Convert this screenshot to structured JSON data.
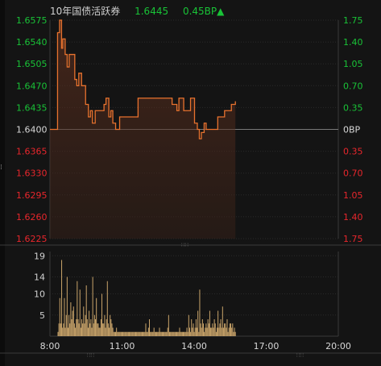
{
  "header": {
    "title": "10年国债活跃券",
    "price": "1.6445",
    "change": "0.45BP▲"
  },
  "colors": {
    "up": "#19c337",
    "down": "#e8262c",
    "line": "#e8722e",
    "volume": "#c9a46a"
  },
  "chart_data": [
    {
      "type": "line",
      "title": "",
      "price_ticks": [
        "1.6575",
        "1.6540",
        "1.6505",
        "1.6470",
        "1.6435",
        "1.6400",
        "1.6365",
        "1.6330",
        "1.6295",
        "1.6260",
        "1.6225"
      ],
      "bp_ticks": [
        "1.75",
        "1.40",
        "1.05",
        "0.70",
        "0.35",
        "0BP",
        "0.35",
        "0.70",
        "1.05",
        "1.40",
        "1.75"
      ],
      "ylim": [
        1.6225,
        1.6575
      ],
      "x_labels": [
        "8:00",
        "11:00",
        "14:00",
        "17:00",
        "20:00"
      ],
      "base": 1.64,
      "series": [
        {
          "x": [
            "8:00",
            "8:07",
            "8:10",
            "8:14",
            "8:19",
            "8:24",
            "8:29",
            "8:32",
            "8:38",
            "8:43",
            "8:48",
            "8:55",
            "9:02",
            "9:07",
            "9:12",
            "9:19",
            "9:24",
            "9:29",
            "9:36",
            "9:41",
            "9:46",
            "9:53",
            "9:58",
            "10:03",
            "10:10",
            "10:15",
            "10:20",
            "10:27",
            "10:32",
            "10:37",
            "10:44",
            "10:49",
            "10:54",
            "11:01",
            "11:06",
            "11:11",
            "11:18",
            "11:23",
            "11:28",
            "11:35",
            "11:40",
            "11:45",
            "11:52",
            "11:57",
            "12:02",
            "12:09",
            "12:14",
            "12:19",
            "12:26",
            "12:31",
            "12:36",
            "12:43",
            "12:48",
            "12:53",
            "13:00",
            "13:05",
            "13:10",
            "13:17",
            "13:22",
            "13:27",
            "13:34",
            "13:39",
            "13:44",
            "13:51",
            "13:56",
            "14:01",
            "14:08",
            "14:13",
            "14:18",
            "14:25",
            "14:30",
            "14:35",
            "14:42",
            "14:47",
            "14:52",
            "14:59",
            "15:04",
            "15:09",
            "15:16",
            "15:21",
            "15:26",
            "15:33",
            "15:38",
            "15:43"
          ],
          "values": [
            1.64,
            1.64,
            1.64,
            1.64,
            1.6555,
            1.6575,
            1.653,
            1.6545,
            1.652,
            1.65,
            1.652,
            1.652,
            1.648,
            1.647,
            1.649,
            1.647,
            1.647,
            1.644,
            1.642,
            1.643,
            1.641,
            1.643,
            1.643,
            1.643,
            1.643,
            1.644,
            1.645,
            1.642,
            1.643,
            1.641,
            1.64,
            1.64,
            1.642,
            1.642,
            1.642,
            1.642,
            1.642,
            1.642,
            1.642,
            1.642,
            1.645,
            1.645,
            1.645,
            1.645,
            1.645,
            1.645,
            1.645,
            1.645,
            1.645,
            1.645,
            1.645,
            1.645,
            1.645,
            1.645,
            1.645,
            1.644,
            1.644,
            1.643,
            1.645,
            1.645,
            1.643,
            1.643,
            1.643,
            1.645,
            1.645,
            1.641,
            1.64,
            1.6385,
            1.6395,
            1.641,
            1.64,
            1.64,
            1.64,
            1.64,
            1.64,
            1.642,
            1.642,
            1.642,
            1.643,
            1.643,
            1.643,
            1.644,
            1.644,
            1.6445
          ]
        }
      ]
    },
    {
      "type": "bar",
      "title": "",
      "y_ticks": [
        "19",
        "14",
        "10",
        "5"
      ],
      "ylim": [
        0,
        20
      ],
      "x_range": [
        "8:00",
        "20:00"
      ],
      "values": [
        1,
        3,
        9,
        3,
        18,
        2,
        3,
        9,
        2,
        5,
        14,
        2,
        5,
        3,
        8,
        4,
        6,
        7,
        3,
        2,
        4,
        13,
        4,
        3,
        11,
        2,
        4,
        3,
        7,
        3,
        5,
        12,
        4,
        2,
        6,
        3,
        4,
        2,
        14,
        3,
        5,
        4,
        9,
        3,
        3,
        2,
        2,
        4,
        10,
        3,
        3,
        5,
        2,
        4,
        13,
        3,
        2,
        5,
        4,
        3,
        2,
        1,
        1,
        1,
        2,
        1,
        1,
        1,
        1,
        1,
        1,
        1,
        1,
        1,
        1,
        1,
        1,
        1,
        1,
        1,
        1,
        1,
        1,
        1,
        1,
        1,
        1,
        1,
        1,
        1,
        1,
        1,
        1,
        1,
        1,
        1,
        3,
        1,
        1,
        2,
        4,
        1,
        1,
        1,
        1,
        2,
        1,
        1,
        1,
        1,
        1,
        2,
        1,
        1,
        1,
        1,
        1,
        1,
        1,
        1,
        2,
        5,
        1,
        1,
        1,
        1,
        1,
        1,
        1,
        1,
        1,
        1,
        1,
        2,
        1,
        1,
        1,
        1,
        1,
        1,
        1,
        2,
        1,
        5,
        2,
        1,
        4,
        2,
        3,
        1,
        2,
        4,
        2,
        6,
        1,
        11,
        3,
        2,
        4,
        3,
        1,
        2,
        3,
        2,
        4,
        3,
        6,
        2,
        2,
        3,
        2,
        4,
        3,
        1,
        2,
        6,
        2,
        3,
        4,
        2,
        7,
        2,
        3,
        3,
        2,
        4,
        1,
        2,
        3,
        3,
        2,
        3,
        1,
        2,
        1
      ]
    }
  ]
}
